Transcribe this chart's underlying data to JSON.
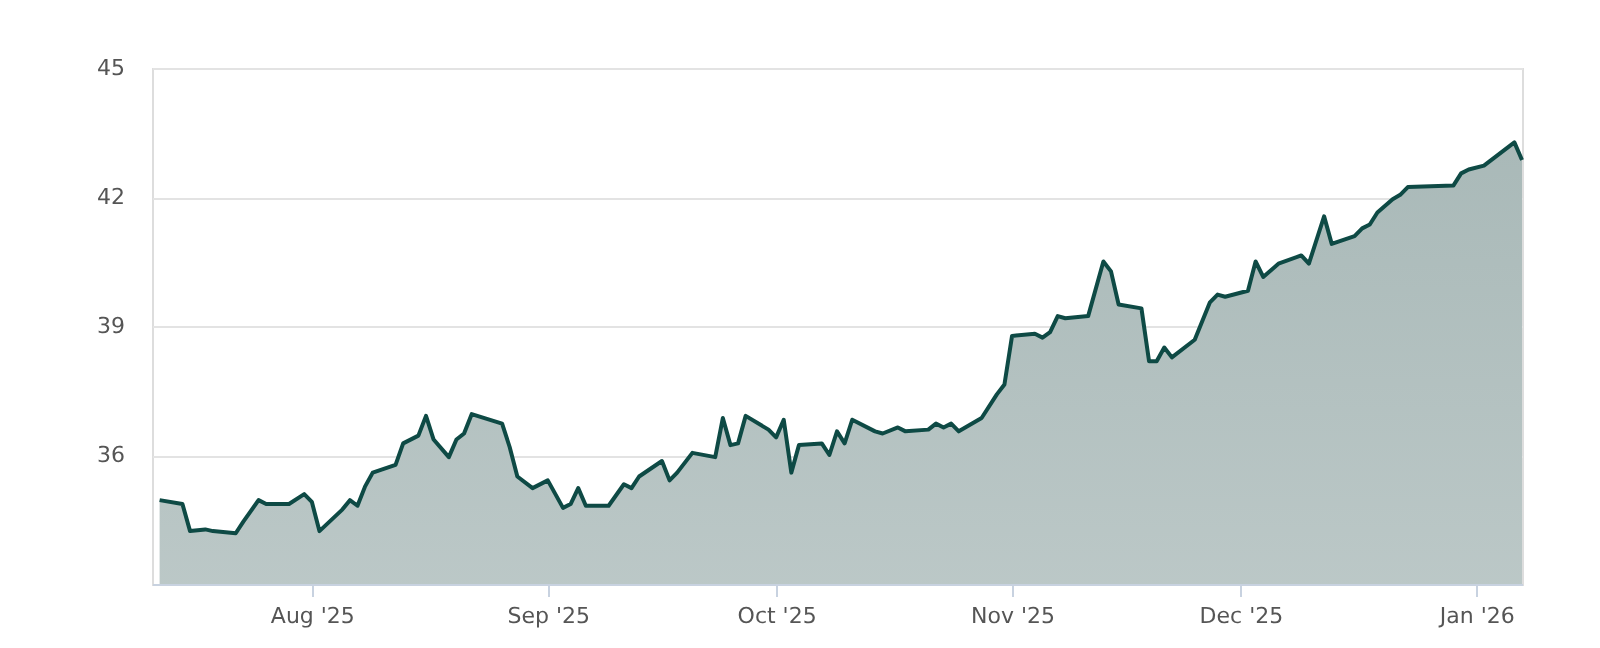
{
  "chart_data": {
    "type": "area",
    "x": [
      "2025-07-12",
      "2025-07-15",
      "2025-07-16",
      "2025-07-18",
      "2025-07-19",
      "2025-07-22",
      "2025-07-23",
      "2025-07-25",
      "2025-07-26",
      "2025-07-29",
      "2025-07-31",
      "2025-08-01",
      "2025-08-02",
      "2025-08-05",
      "2025-08-06",
      "2025-08-07",
      "2025-08-08",
      "2025-08-09",
      "2025-08-12",
      "2025-08-13",
      "2025-08-15",
      "2025-08-16",
      "2025-08-17",
      "2025-08-19",
      "2025-08-20",
      "2025-08-21",
      "2025-08-22",
      "2025-08-26",
      "2025-08-27",
      "2025-08-28",
      "2025-08-30",
      "2025-09-01",
      "2025-09-03",
      "2025-09-04",
      "2025-09-05",
      "2025-09-06",
      "2025-09-09",
      "2025-09-11",
      "2025-09-12",
      "2025-09-13",
      "2025-09-16",
      "2025-09-17",
      "2025-09-18",
      "2025-09-20",
      "2025-09-23",
      "2025-09-24",
      "2025-09-25",
      "2025-09-26",
      "2025-09-27",
      "2025-09-30",
      "2025-10-01",
      "2025-10-02",
      "2025-10-03",
      "2025-10-04",
      "2025-10-07",
      "2025-10-08",
      "2025-10-09",
      "2025-10-10",
      "2025-10-11",
      "2025-10-14",
      "2025-10-15",
      "2025-10-17",
      "2025-10-18",
      "2025-10-21",
      "2025-10-22",
      "2025-10-23",
      "2025-10-24",
      "2025-10-25",
      "2025-10-28",
      "2025-10-30",
      "2025-10-31",
      "2025-11-01",
      "2025-11-04",
      "2025-11-05",
      "2025-11-06",
      "2025-11-07",
      "2025-11-08",
      "2025-11-11",
      "2025-11-13",
      "2025-11-14",
      "2025-11-15",
      "2025-11-18",
      "2025-11-19",
      "2025-11-20",
      "2025-11-21",
      "2025-11-22",
      "2025-11-25",
      "2025-11-27",
      "2025-11-28",
      "2025-11-29",
      "2025-12-02",
      "2025-12-03",
      "2025-12-04",
      "2025-12-06",
      "2025-12-09",
      "2025-12-10",
      "2025-12-12",
      "2025-12-13",
      "2025-12-16",
      "2025-12-17",
      "2025-12-18",
      "2025-12-19",
      "2025-12-21",
      "2025-12-22",
      "2025-12-23",
      "2025-12-29",
      "2025-12-30",
      "2025-12-31",
      "2026-01-02",
      "2026-01-06",
      "2026-01-07"
    ],
    "series": [
      {
        "color": "#0e4a45",
        "values": [
          34.95,
          34.86,
          34.23,
          34.27,
          34.23,
          34.18,
          34.45,
          34.95,
          34.86,
          34.86,
          35.09,
          34.91,
          34.23,
          34.73,
          34.95,
          34.82,
          35.27,
          35.59,
          35.77,
          36.27,
          36.45,
          36.91,
          36.36,
          35.95,
          36.36,
          36.5,
          36.95,
          36.73,
          36.18,
          35.5,
          35.23,
          35.41,
          34.77,
          34.86,
          35.23,
          34.82,
          34.82,
          35.32,
          35.23,
          35.5,
          35.86,
          35.41,
          35.59,
          36.05,
          35.95,
          36.86,
          36.23,
          36.27,
          36.91,
          36.59,
          36.41,
          36.82,
          35.59,
          36.23,
          36.27,
          36.0,
          36.55,
          36.27,
          36.82,
          36.55,
          36.5,
          36.64,
          36.55,
          36.59,
          36.73,
          36.64,
          36.73,
          36.55,
          36.86,
          37.41,
          37.64,
          38.77,
          38.82,
          38.73,
          38.86,
          39.23,
          39.18,
          39.23,
          40.5,
          40.27,
          39.5,
          39.41,
          38.18,
          38.18,
          38.5,
          38.27,
          38.68,
          39.55,
          39.73,
          39.68,
          39.82,
          40.5,
          40.14,
          40.45,
          40.64,
          40.45,
          41.55,
          40.91,
          41.09,
          41.27,
          41.36,
          41.64,
          41.95,
          42.05,
          42.23,
          42.27,
          42.55,
          42.64,
          42.73,
          43.27,
          42.86
        ]
      }
    ],
    "xlim": [
      "2025-07-11",
      "2026-01-07"
    ],
    "xticks": [
      {
        "value": "2025-08-01",
        "label": "Aug '25"
      },
      {
        "value": "2025-09-01",
        "label": "Sep '25"
      },
      {
        "value": "2025-10-01",
        "label": "Oct '25"
      },
      {
        "value": "2025-11-01",
        "label": "Nov '25"
      },
      {
        "value": "2025-12-01",
        "label": "Dec '25"
      },
      {
        "value": "2026-01-01",
        "label": "Jan '26"
      }
    ],
    "ylim": [
      33,
      45
    ],
    "yticks": [
      36,
      39,
      42,
      45
    ],
    "grid": "y",
    "line_style": "solid",
    "marker": "none"
  }
}
